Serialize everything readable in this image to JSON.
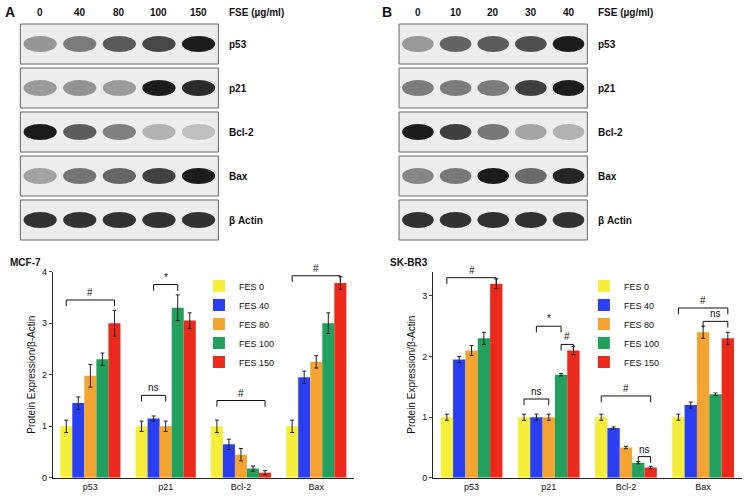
{
  "chart_data": [
    {
      "type": "bar",
      "title": "MCF-7",
      "y_label": "Protein Expression/β-Actin",
      "categories": [
        "p53",
        "p21",
        "Bcl-2",
        "Bax"
      ],
      "series": [
        {
          "name": "FES 0",
          "color": "#f5ee3a",
          "values": [
            1.0,
            1.0,
            1.0,
            1.0
          ],
          "errors": [
            0.12,
            0.1,
            0.12,
            0.12
          ]
        },
        {
          "name": "FES 40",
          "color": "#2b3ff2",
          "values": [
            1.45,
            1.15,
            0.65,
            1.95
          ],
          "errors": [
            0.12,
            0.05,
            0.1,
            0.12
          ]
        },
        {
          "name": "FES 80",
          "color": "#f5a431",
          "values": [
            1.98,
            1.0,
            0.45,
            2.25
          ],
          "errors": [
            0.22,
            0.1,
            0.12,
            0.12
          ]
        },
        {
          "name": "FES 100",
          "color": "#22a05e",
          "values": [
            2.3,
            3.3,
            0.18,
            3.0
          ],
          "errors": [
            0.12,
            0.25,
            0.05,
            0.2
          ]
        },
        {
          "name": "FES 150",
          "color": "#ec2a1c",
          "values": [
            3.0,
            3.05,
            0.1,
            3.78
          ],
          "errors": [
            0.25,
            0.15,
            0.04,
            0.12
          ]
        }
      ],
      "ylim": [
        0,
        4
      ],
      "yticks": [
        0,
        1,
        2,
        3,
        4
      ],
      "grid": false,
      "legend": "upper center",
      "annotations": [
        {
          "text": "#",
          "category": 0,
          "from_series": 0,
          "to_series": 4,
          "y": 3.45
        },
        {
          "text": "ns",
          "category": 1,
          "from_series": 0,
          "to_series": 2,
          "y": 1.6
        },
        {
          "text": "*",
          "category": 1,
          "from_series": 1,
          "to_series": 3,
          "y": 3.75
        },
        {
          "text": "#",
          "category": 2,
          "from_series": 0,
          "to_series": 4,
          "y": 1.5
        },
        {
          "text": "#",
          "category": 3,
          "from_series": 0,
          "to_series": 4,
          "y": 3.92
        }
      ]
    },
    {
      "type": "bar",
      "title": "SK-BR3",
      "y_label": "Protein Expression/β-Actin",
      "categories": [
        "p53",
        "p21",
        "Bcl-2",
        "Bax"
      ],
      "series": [
        {
          "name": "FES 0",
          "color": "#f5ee3a",
          "values": [
            1.0,
            1.0,
            1.0,
            1.0
          ],
          "errors": [
            0.05,
            0.05,
            0.05,
            0.05
          ]
        },
        {
          "name": "FES 40",
          "color": "#2b3ff2",
          "values": [
            1.95,
            1.0,
            0.82,
            1.2
          ],
          "errors": [
            0.05,
            0.05,
            0.02,
            0.05
          ]
        },
        {
          "name": "FES 80",
          "color": "#f5a431",
          "values": [
            2.1,
            1.0,
            0.5,
            2.4
          ],
          "errors": [
            0.08,
            0.05,
            0.02,
            0.1
          ]
        },
        {
          "name": "FES 100",
          "color": "#22a05e",
          "values": [
            2.3,
            1.7,
            0.25,
            1.38
          ],
          "errors": [
            0.1,
            0.02,
            0.02,
            0.02
          ]
        },
        {
          "name": "FES 150",
          "color": "#ec2a1c",
          "values": [
            3.2,
            2.1,
            0.17,
            2.3
          ],
          "errors": [
            0.08,
            0.07,
            0.02,
            0.1
          ]
        }
      ],
      "ylim": [
        0,
        3.4
      ],
      "yticks": [
        0,
        1,
        2,
        3
      ],
      "grid": false,
      "legend": "upper center",
      "annotations": [
        {
          "text": "#",
          "category": 0,
          "from_series": 0,
          "to_series": 4,
          "y": 3.3
        },
        {
          "text": "ns",
          "category": 1,
          "from_series": 0,
          "to_series": 2,
          "y": 1.3
        },
        {
          "text": "*",
          "category": 1,
          "from_series": 1,
          "to_series": 3,
          "y": 2.5
        },
        {
          "text": "#",
          "category": 1,
          "from_series": 3,
          "to_series": 4,
          "y": 2.2
        },
        {
          "text": "#",
          "category": 2,
          "from_series": 0,
          "to_series": 4,
          "y": 1.35
        },
        {
          "text": "ns",
          "category": 2,
          "from_series": 3,
          "to_series": 4,
          "y": 0.35
        },
        {
          "text": "#",
          "category": 3,
          "from_series": 0,
          "to_series": 4,
          "y": 2.8
        },
        {
          "text": "ns",
          "category": 3,
          "from_series": 2,
          "to_series": 4,
          "y": 2.58
        }
      ]
    }
  ],
  "blots": [
    {
      "panel": "A",
      "dose_label": "FSE (µg/ml)",
      "doses": [
        0,
        40,
        80,
        100,
        150
      ],
      "rows": [
        "p53",
        "p21",
        "Bcl-2",
        "Bax",
        "β Actin"
      ]
    },
    {
      "panel": "B",
      "dose_label": "FSE (µg/ml)",
      "doses": [
        0,
        10,
        20,
        30,
        40
      ],
      "rows": [
        "p53",
        "p21",
        "Bcl-2",
        "Bax",
        "β Actin"
      ]
    }
  ]
}
